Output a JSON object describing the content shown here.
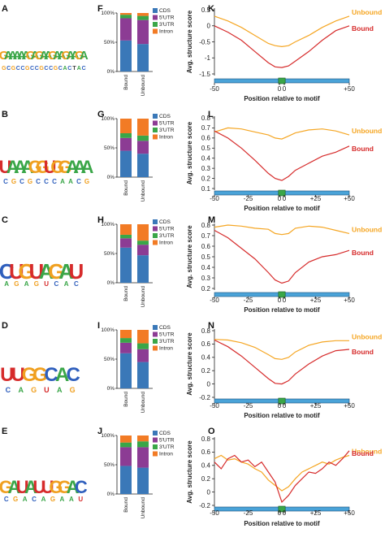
{
  "panel_letters": {
    "logos": [
      "A",
      "B",
      "C",
      "D",
      "E"
    ],
    "bars": [
      "F",
      "G",
      "H",
      "I",
      "J"
    ],
    "lines": [
      "K",
      "L",
      "M",
      "N",
      "O"
    ]
  },
  "motifs": [
    {
      "top": "GAAAAAGAGAAGAAGAAGA",
      "bottom": "GCGCCGCCGCCGCACTAC"
    },
    {
      "top": "UAAAGGUGGAAA",
      "bottom": "CGCGCCCAACG"
    },
    {
      "top": "CUGUAGAU",
      "bottom": "AGAGUCAC"
    },
    {
      "top": "UUGGCAC",
      "bottom": "CAGUAG"
    },
    {
      "top": "GAUAUUGGAC",
      "bottom": "CGACAGAAU"
    }
  ],
  "colors": {
    "CDS": "#3a78b8",
    "5'UTR": "#8c3c94",
    "3'UTR": "#3aa648",
    "Intron": "#f27b25",
    "Bound": "#d62b2b",
    "Unbound": "#f5a623",
    "gene_bar": "#4aa3d8",
    "motif_box": "#3aa648",
    "logo_A": "#3aa648",
    "logo_C": "#2f5fbd",
    "logo_G": "#f0a020",
    "logo_U": "#d62b2b"
  },
  "chart_data": [
    {
      "panel": "F",
      "type": "bar",
      "stacked": true,
      "categories": [
        "Bound",
        "Unbound"
      ],
      "yticks": [
        "0%",
        "50%",
        "100%"
      ],
      "ylim": [
        0,
        100
      ],
      "legend": [
        "CDS",
        "5'UTR",
        "3'UTR",
        "Intron"
      ],
      "series": [
        {
          "name": "CDS",
          "values": [
            53,
            47
          ]
        },
        {
          "name": "5'UTR",
          "values": [
            38,
            41
          ]
        },
        {
          "name": "3'UTR",
          "values": [
            6,
            7
          ]
        },
        {
          "name": "Intron",
          "values": [
            3,
            5
          ]
        }
      ]
    },
    {
      "panel": "G",
      "type": "bar",
      "stacked": true,
      "categories": [
        "Bound",
        "Unbound"
      ],
      "yticks": [
        "0%",
        "50%",
        "100%"
      ],
      "ylim": [
        0,
        100
      ],
      "legend": [
        "CDS",
        "5'UTR",
        "3'UTR",
        "Intron"
      ],
      "series": [
        {
          "name": "CDS",
          "values": [
            45,
            40
          ]
        },
        {
          "name": "5'UTR",
          "values": [
            22,
            22
          ]
        },
        {
          "name": "3'UTR",
          "values": [
            8,
            9
          ]
        },
        {
          "name": "Intron",
          "values": [
            25,
            29
          ]
        }
      ]
    },
    {
      "panel": "H",
      "type": "bar",
      "stacked": true,
      "categories": [
        "Bound",
        "Unbound"
      ],
      "yticks": [
        "0%",
        "50%",
        "100%"
      ],
      "ylim": [
        0,
        100
      ],
      "legend": [
        "CDS",
        "5'UTR",
        "3'UTR",
        "Intron"
      ],
      "series": [
        {
          "name": "CDS",
          "values": [
            60,
            47
          ]
        },
        {
          "name": "5'UTR",
          "values": [
            16,
            18
          ]
        },
        {
          "name": "3'UTR",
          "values": [
            6,
            7
          ]
        },
        {
          "name": "Intron",
          "values": [
            18,
            28
          ]
        }
      ]
    },
    {
      "panel": "I",
      "type": "bar",
      "stacked": true,
      "categories": [
        "Bound",
        "Unbound"
      ],
      "yticks": [
        "0%",
        "50%",
        "100%"
      ],
      "ylim": [
        0,
        100
      ],
      "legend": [
        "CDS",
        "5'UTR",
        "3'UTR",
        "Intron"
      ],
      "series": [
        {
          "name": "CDS",
          "values": [
            60,
            45
          ]
        },
        {
          "name": "5'UTR",
          "values": [
            18,
            22
          ]
        },
        {
          "name": "3'UTR",
          "values": [
            8,
            10
          ]
        },
        {
          "name": "Intron",
          "values": [
            14,
            23
          ]
        }
      ]
    },
    {
      "panel": "J",
      "type": "bar",
      "stacked": true,
      "categories": [
        "Bound",
        "Unbound"
      ],
      "yticks": [
        "0%",
        "50%",
        "100%"
      ],
      "ylim": [
        0,
        100
      ],
      "legend": [
        "CDS",
        "5'UTR",
        "3'UTR",
        "Intron"
      ],
      "series": [
        {
          "name": "CDS",
          "values": [
            48,
            45
          ]
        },
        {
          "name": "5'UTR",
          "values": [
            32,
            35
          ]
        },
        {
          "name": "3'UTR",
          "values": [
            8,
            10
          ]
        },
        {
          "name": "Intron",
          "values": [
            12,
            10
          ]
        }
      ]
    },
    {
      "panel": "K",
      "type": "line",
      "ylabel": "Avg. structure score",
      "xlabel": "Position relative to motif",
      "ylim": [
        -1.5,
        0.5
      ],
      "yticks": [
        0.5,
        0,
        -0.5,
        -1,
        -1.5
      ],
      "xticks": [
        "-50",
        "0",
        "0",
        "+50"
      ],
      "x": [
        -50,
        -40,
        -30,
        -20,
        -10,
        -5,
        0,
        5,
        10,
        20,
        30,
        40,
        50
      ],
      "series": [
        {
          "name": "Unbound",
          "values": [
            0.3,
            0.15,
            -0.05,
            -0.3,
            -0.55,
            -0.62,
            -0.65,
            -0.62,
            -0.5,
            -0.3,
            -0.05,
            0.15,
            0.3
          ]
        },
        {
          "name": "Bound",
          "values": [
            0.0,
            -0.2,
            -0.45,
            -0.8,
            -1.15,
            -1.28,
            -1.3,
            -1.25,
            -1.1,
            -0.8,
            -0.45,
            -0.15,
            0.0
          ]
        }
      ]
    },
    {
      "panel": "L",
      "type": "line",
      "ylabel": "Avg. structure score",
      "xlabel": "Position relative to motif",
      "ylim": [
        0.1,
        0.8
      ],
      "yticks": [
        0.8,
        0.7,
        0.6,
        0.5,
        0.4,
        0.3,
        0.2,
        0.1
      ],
      "xticks": [
        "-50",
        "-25",
        "0",
        "0",
        "+25",
        "+50"
      ],
      "x": [
        -50,
        -40,
        -30,
        -20,
        -10,
        -5,
        0,
        5,
        10,
        20,
        30,
        40,
        50
      ],
      "series": [
        {
          "name": "Unbound",
          "values": [
            0.66,
            0.7,
            0.69,
            0.66,
            0.63,
            0.6,
            0.59,
            0.62,
            0.65,
            0.68,
            0.69,
            0.67,
            0.63
          ]
        },
        {
          "name": "Bound",
          "values": [
            0.67,
            0.6,
            0.5,
            0.38,
            0.25,
            0.2,
            0.18,
            0.22,
            0.28,
            0.35,
            0.42,
            0.46,
            0.52
          ]
        }
      ]
    },
    {
      "panel": "M",
      "type": "line",
      "ylabel": "Avg. structure score",
      "xlabel": "Position relative to motif",
      "ylim": [
        0.2,
        0.8
      ],
      "yticks": [
        0.8,
        0.7,
        0.6,
        0.5,
        0.4,
        0.3,
        0.2
      ],
      "xticks": [
        "-50",
        "-25",
        "0",
        "0",
        "+25",
        "+50"
      ],
      "x": [
        -50,
        -40,
        -30,
        -20,
        -10,
        -5,
        0,
        5,
        10,
        20,
        30,
        40,
        50
      ],
      "series": [
        {
          "name": "Unbound",
          "values": [
            0.78,
            0.8,
            0.79,
            0.77,
            0.76,
            0.72,
            0.71,
            0.72,
            0.77,
            0.79,
            0.78,
            0.75,
            0.72
          ]
        },
        {
          "name": "Bound",
          "values": [
            0.75,
            0.68,
            0.58,
            0.48,
            0.35,
            0.28,
            0.25,
            0.27,
            0.35,
            0.45,
            0.5,
            0.52,
            0.56
          ]
        }
      ]
    },
    {
      "panel": "N",
      "type": "line",
      "ylabel": "Avg. structure score",
      "xlabel": "Position relative to motif",
      "ylim": [
        -0.2,
        0.8
      ],
      "yticks": [
        0.8,
        0.6,
        0.4,
        0.2,
        0,
        -0.2
      ],
      "xticks": [
        "-50",
        "-25",
        "0",
        "0",
        "+25",
        "+50"
      ],
      "x": [
        -50,
        -40,
        -30,
        -20,
        -10,
        -5,
        0,
        5,
        10,
        20,
        30,
        40,
        50
      ],
      "series": [
        {
          "name": "Unbound",
          "values": [
            0.67,
            0.66,
            0.62,
            0.55,
            0.44,
            0.38,
            0.37,
            0.4,
            0.48,
            0.58,
            0.63,
            0.65,
            0.65
          ]
        },
        {
          "name": "Bound",
          "values": [
            0.66,
            0.56,
            0.42,
            0.25,
            0.08,
            0.01,
            0.0,
            0.05,
            0.15,
            0.3,
            0.42,
            0.5,
            0.52
          ]
        }
      ]
    },
    {
      "panel": "O",
      "type": "line",
      "ylabel": "Avg. structure score",
      "xlabel": "Position relative to motif",
      "ylim": [
        -0.2,
        0.8
      ],
      "yticks": [
        0.8,
        0.6,
        0.4,
        0.2,
        0,
        -0.2
      ],
      "xticks": [
        "-50",
        "-25",
        "0",
        "0",
        "+25",
        "+50"
      ],
      "x": [
        -50,
        -45,
        -40,
        -35,
        -30,
        -25,
        -20,
        -15,
        -10,
        -5,
        0,
        5,
        10,
        15,
        20,
        25,
        30,
        35,
        40,
        45,
        50
      ],
      "series": [
        {
          "name": "Unbound",
          "values": [
            0.5,
            0.55,
            0.48,
            0.5,
            0.45,
            0.42,
            0.35,
            0.3,
            0.18,
            0.1,
            0.02,
            0.08,
            0.2,
            0.3,
            0.35,
            0.4,
            0.45,
            0.42,
            0.48,
            0.52,
            0.55
          ]
        },
        {
          "name": "Bound",
          "values": [
            0.45,
            0.35,
            0.5,
            0.55,
            0.45,
            0.48,
            0.38,
            0.45,
            0.3,
            0.15,
            -0.15,
            -0.05,
            0.1,
            0.2,
            0.3,
            0.28,
            0.35,
            0.45,
            0.4,
            0.5,
            0.62
          ]
        }
      ]
    }
  ]
}
